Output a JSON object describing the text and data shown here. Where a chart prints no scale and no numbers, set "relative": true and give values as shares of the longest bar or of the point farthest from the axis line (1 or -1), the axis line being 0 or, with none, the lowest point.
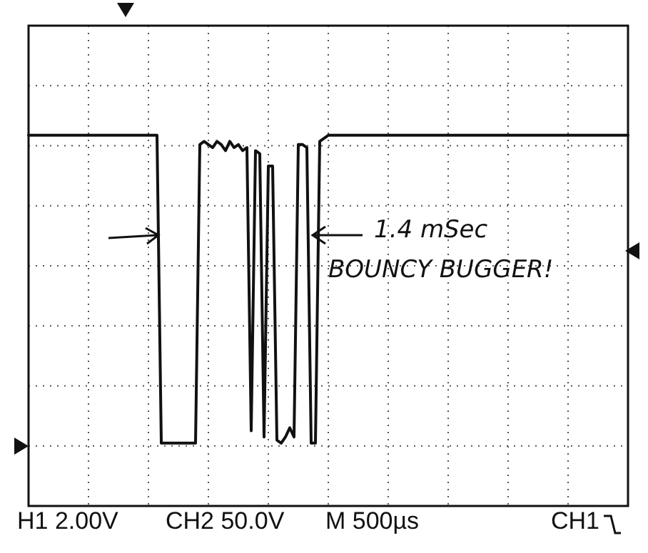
{
  "chart_data": {
    "type": "line",
    "relative": true,
    "grid": true,
    "legend": false,
    "tick_labels": false,
    "marker": "none",
    "line_style": "solid",
    "categories": [
      null,
      null,
      null,
      null,
      null,
      null,
      null,
      null,
      null,
      null,
      null,
      null,
      null,
      null,
      null,
      null,
      null,
      null,
      null,
      null,
      null,
      null,
      null,
      null,
      null,
      null,
      null,
      null,
      null,
      null,
      null,
      null,
      null,
      null,
      null,
      null,
      null,
      null,
      null,
      null,
      null,
      null,
      null,
      null,
      null,
      null,
      null,
      null,
      null,
      null,
      null,
      null,
      null,
      null,
      null,
      null,
      null,
      null,
      null,
      null,
      null,
      null,
      null,
      null,
      null,
      null,
      null,
      null,
      null,
      null,
      null,
      null,
      null,
      null,
      null,
      null,
      null,
      null,
      null,
      null,
      null,
      null,
      null,
      null,
      null,
      null,
      null,
      null,
      null,
      null,
      null,
      null,
      null,
      null,
      null,
      null,
      null,
      null,
      null,
      null,
      null,
      null,
      null,
      null,
      null,
      null,
      null,
      null,
      null,
      null,
      null,
      null,
      null,
      null,
      null,
      null,
      null,
      null,
      null,
      null,
      null,
      null,
      null,
      null,
      null,
      null,
      null,
      null,
      null,
      null,
      null,
      null,
      null,
      null,
      null,
      null,
      null,
      null,
      null,
      null,
      null
    ],
    "series": [
      {
        "color": "#111111",
        "values": [
          1,
          1,
          1,
          1,
          1,
          1,
          1,
          1,
          1,
          1,
          1,
          1,
          1,
          1,
          1,
          1,
          1,
          1,
          1,
          1,
          1,
          1,
          1,
          1,
          1,
          1,
          1,
          1,
          1,
          1,
          1,
          0,
          0,
          0,
          0,
          0,
          0,
          0,
          0,
          0,
          0.97,
          0.98,
          0.97,
          0.96,
          0.98,
          0.97,
          0.95,
          0.98,
          0.96,
          0.97,
          0.95,
          0.96,
          0.04,
          0.95,
          0.94,
          0.02,
          0.9,
          0.9,
          0.01,
          0,
          0.02,
          0.05,
          0.02,
          0.97,
          0.97,
          0.96,
          0,
          0,
          0.98,
          0.99,
          1,
          1,
          1,
          1,
          1,
          1,
          1,
          1,
          1,
          1,
          1,
          1,
          1,
          1,
          1,
          1,
          1,
          1,
          1,
          1,
          1,
          1,
          1,
          1,
          1,
          1,
          1,
          1,
          1,
          1,
          1,
          1,
          1,
          1,
          1,
          1,
          1,
          1,
          1,
          1,
          1,
          1,
          1,
          1,
          1,
          1,
          1,
          1,
          1,
          1,
          1,
          1,
          1,
          1,
          1,
          1,
          1,
          1,
          1,
          1,
          1,
          1,
          1,
          1,
          1,
          1,
          1,
          1,
          1,
          1,
          1
        ]
      }
    ],
    "annotations": [
      "1.4 mSec",
      "BOUNCY BUGGER!",
      "H1  2.00V",
      "CH2  50.0V",
      "M 500µs",
      "CH1"
    ]
  }
}
